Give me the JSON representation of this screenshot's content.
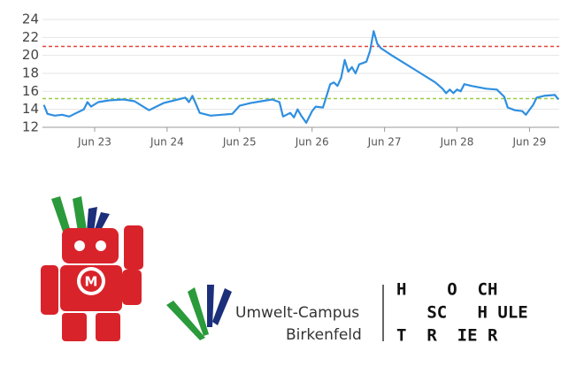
{
  "chart_data": {
    "type": "line",
    "x": [
      22.3,
      22.35,
      22.45,
      22.55,
      22.65,
      22.75,
      22.85,
      22.9,
      22.95,
      23.05,
      23.2,
      23.4,
      23.55,
      23.65,
      23.75,
      23.85,
      23.95,
      24.1,
      24.25,
      24.3,
      24.35,
      24.45,
      24.6,
      24.75,
      24.9,
      25.0,
      25.15,
      25.3,
      25.45,
      25.55,
      25.6,
      25.7,
      25.75,
      25.8,
      25.85,
      25.92,
      26.0,
      26.05,
      26.15,
      26.2,
      26.25,
      26.3,
      26.35,
      26.4,
      26.45,
      26.5,
      26.55,
      26.6,
      26.65,
      26.75,
      26.8,
      26.85,
      26.9,
      26.95,
      27.1,
      27.3,
      27.5,
      27.7,
      27.8,
      27.85,
      27.9,
      27.95,
      28.0,
      28.05,
      28.1,
      28.2,
      28.4,
      28.55,
      28.65,
      28.7,
      28.8,
      28.9,
      28.95,
      29.05,
      29.1,
      29.2,
      29.35,
      29.4
    ],
    "series": [
      {
        "color": "#2f8fe0",
        "values": [
          14.5,
          13.5,
          13.3,
          13.4,
          13.2,
          13.6,
          14.0,
          14.8,
          14.3,
          14.8,
          15.0,
          15.1,
          14.9,
          14.4,
          13.9,
          14.3,
          14.7,
          15.0,
          15.3,
          14.8,
          15.5,
          13.6,
          13.3,
          13.4,
          13.5,
          14.4,
          14.7,
          14.9,
          15.1,
          14.8,
          13.2,
          13.6,
          13.1,
          14.0,
          13.3,
          12.5,
          13.8,
          14.3,
          14.2,
          15.5,
          16.8,
          17.0,
          16.6,
          17.5,
          19.5,
          18.2,
          18.7,
          18.0,
          19.0,
          19.3,
          20.5,
          22.7,
          21.3,
          20.8,
          20.0,
          19.0,
          18.0,
          17.0,
          16.3,
          15.8,
          16.2,
          15.8,
          16.2,
          16.0,
          16.8,
          16.6,
          16.3,
          16.2,
          15.4,
          14.2,
          13.9,
          13.8,
          13.4,
          14.5,
          15.3,
          15.5,
          15.6,
          15.1
        ]
      }
    ],
    "thresholds": [
      {
        "value": 21,
        "color": "#e0463c"
      },
      {
        "value": 15.2,
        "color": "#9ccc45"
      }
    ],
    "xlim": [
      22.28,
      29.41
    ],
    "xticks": [
      {
        "value": 23,
        "label": "Jun 23"
      },
      {
        "value": 24,
        "label": "Jun 24"
      },
      {
        "value": 25,
        "label": "Jun 25"
      },
      {
        "value": 26,
        "label": "Jun 26"
      },
      {
        "value": 27,
        "label": "Jun 27"
      },
      {
        "value": 28,
        "label": "Jun 28"
      },
      {
        "value": 29,
        "label": "Jun 29"
      }
    ],
    "ylim": [
      12,
      24
    ],
    "yticks": [
      12,
      14,
      16,
      18,
      20,
      22,
      24
    ],
    "grid": true
  },
  "logos": {
    "maker_letter": "M",
    "campus_line1": "Umwelt-Campus",
    "campus_line2": "Birkenfeld",
    "school_line1": "H    O  CH",
    "school_line2": "   SC   H ULE",
    "school_line3": "T  R  IE R"
  }
}
